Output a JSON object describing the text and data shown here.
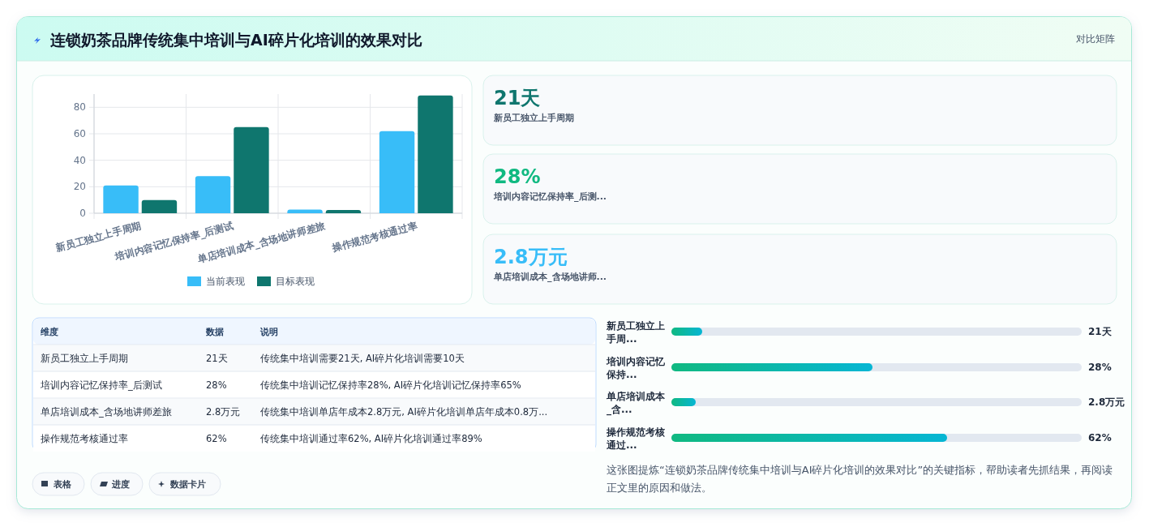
{
  "chart_data": [
    {
      "type": "other",
      "title": "连锁奶茶品牌传统集中培训与AI碎片化培训的效果对比",
      "annotations": [
        "对比矩阵",
        "这张图提炼“连锁奶茶品牌传统集中培训与AI碎片化培训的效果对比”的关键指标，帮助读者先抓结果，再阅读正文里的原因和做法。",
        "表格",
        "进度",
        "数据卡片"
      ]
    },
    {
      "type": "bar",
      "categories": [
        "新员工独立上手周期",
        "培训内容记忆保持率_后测试",
        "单店培训成本_含场地讲师差旅",
        "操作规范考核通过率"
      ],
      "series": [
        {
          "name": "当前表现",
          "color": "#38bdf8",
          "values": [
            21,
            28,
            2.8,
            62
          ]
        },
        {
          "name": "目标表现",
          "color": "#0f766e",
          "values": [
            10,
            65,
            2.5,
            89
          ]
        }
      ],
      "ylim": [
        0,
        90
      ],
      "yticks": [
        0,
        20,
        40,
        60,
        80
      ],
      "grid": true,
      "legend": "bottom"
    },
    {
      "type": "other",
      "annotations": [
        "21天",
        "新员工独立上手周期",
        "28%",
        "培训内容记忆保持率_后测...",
        "2.8万元",
        "单店培训成本_含场地讲师..."
      ],
      "colors": [
        "#0f766e",
        "#10b981",
        "#38bdf8"
      ]
    },
    {
      "type": "other",
      "annotations": [
        "维度",
        "数据",
        "说明",
        "新员工独立上手周期",
        "21天",
        "传统集中培训需要21天, AI碎片化培训需要10天",
        "培训内容记忆保持率_后测试",
        "28%",
        "传统集中培训记忆保持率28%, AI碎片化培训记忆保持率65%",
        "单店培训成本_含场地讲师差旅",
        "2.8万元",
        "传统集中培训单店年成本2.8万元, AI碎片化培训单店年成本0.8万...",
        "操作规范考核通过率",
        "62%",
        "传统集中培训通过率62%, AI碎片化培训通过率89%"
      ]
    },
    {
      "type": "other",
      "annotations": [
        "新员工独立上手周...",
        "21天",
        "培训内容记忆保持...",
        "28%",
        "单店培训成本_含...",
        "2.8万元",
        "操作规范考核通过...",
        "62%"
      ]
    }
  ]
}
